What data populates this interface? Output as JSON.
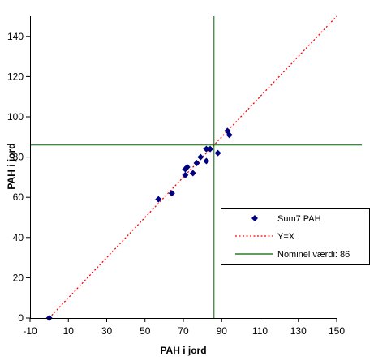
{
  "chart_data": {
    "type": "scatter",
    "xlabel": "PAH i jord",
    "ylabel": "PAH i jord",
    "xlim": [
      -10,
      150
    ],
    "ylim": [
      0,
      150
    ],
    "x_ticks": [
      "-10",
      "10",
      "30",
      "50",
      "70",
      "90",
      "110",
      "130",
      "150"
    ],
    "y_ticks": [
      "0",
      "20",
      "40",
      "60",
      "80",
      "100",
      "120",
      "140"
    ],
    "series": [
      {
        "name": "Sum7 PAH",
        "type": "scatter",
        "color": "#000080",
        "marker": "diamond",
        "points": [
          [
            0,
            0
          ],
          [
            57,
            59
          ],
          [
            64,
            62
          ],
          [
            71,
            71
          ],
          [
            71,
            74
          ],
          [
            72,
            75
          ],
          [
            75,
            72
          ],
          [
            77,
            77
          ],
          [
            79,
            80
          ],
          [
            82,
            84
          ],
          [
            82,
            78
          ],
          [
            84,
            84
          ],
          [
            88,
            82
          ],
          [
            93,
            93
          ],
          [
            94,
            91
          ]
        ]
      },
      {
        "name": "Y=X",
        "type": "line",
        "style": "dotted",
        "color": "#ff0000",
        "points": [
          [
            0,
            0
          ],
          [
            150,
            150
          ]
        ]
      },
      {
        "name": "Nominel værdi:  86",
        "type": "line",
        "style": "solid",
        "color": "#006400",
        "value": 86
      }
    ],
    "legend": {
      "position": "right",
      "entries": [
        {
          "label": "Sum7 PAH",
          "symbol": "diamond",
          "color": "#000080"
        },
        {
          "label": "Y=X",
          "symbol": "dotted-line",
          "color": "#ff0000"
        },
        {
          "label": "Nominel værdi:  86",
          "symbol": "solid-line",
          "color": "#006400"
        }
      ]
    },
    "grid": false
  }
}
